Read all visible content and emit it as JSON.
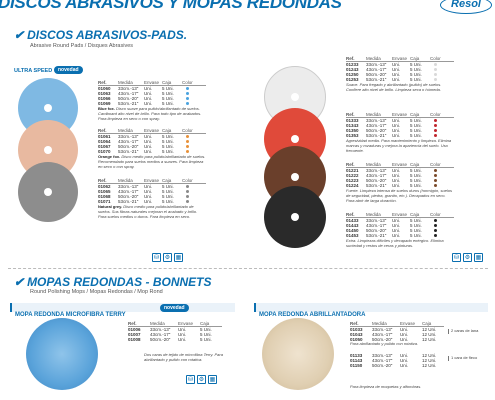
{
  "header": {
    "title": "DISCOS ABRASIVOS Y MOPAS REDONDAS",
    "logo": "Resol"
  },
  "discs": {
    "title": "DISCOS ABRASIVOS-PADS.",
    "subtitle": "Abrasive Round Pads / Disques Abrasives",
    "badge": "ULTRA SPEED",
    "novelty": "novedad",
    "columns": [
      "Ref.",
      "Medida",
      "Envase",
      "Caja",
      "Color"
    ],
    "left_groups": [
      {
        "name": "Blue fox.",
        "color": "#4aa3df",
        "rows": [
          [
            "01060",
            "33cm.-13\"",
            "Uni.",
            "5 Uni."
          ],
          [
            "01063",
            "43cm.-17\"",
            "Uni.",
            "5 Uni."
          ],
          [
            "01066",
            "50cm.-20\"",
            "Uni.",
            "5 Uni."
          ],
          [
            "01069",
            "53cm.-21\"",
            "Uni.",
            "5 Uni."
          ]
        ],
        "desc_name": "Blue fox.",
        "desc": "Disco suave para pulido/abrillantado de suelos. Cardboard alto nivel de brillo. Para todo tipo de acabados. Para limpieza en seco o con spray."
      },
      {
        "name": "Orange fox.",
        "color": "#e8913a",
        "rows": [
          [
            "01061",
            "33cm.-13\"",
            "Uni.",
            "5 Uni."
          ],
          [
            "01064",
            "43cm.-17\"",
            "Uni.",
            "5 Uni."
          ],
          [
            "01067",
            "50cm.-20\"",
            "Uni.",
            "5 Uni."
          ],
          [
            "01070",
            "53cm.-21\"",
            "Uni.",
            "5 Uni."
          ]
        ],
        "desc_name": "Orange fox.",
        "desc": "Disco medio para pulido/abrillantado de suelos. Recomendado para suelos medios a suaves. Para limpieza en seco o con spray."
      },
      {
        "name": "Natural grey.",
        "color": "#8a8a8a",
        "rows": [
          [
            "01062",
            "33cm.-13\"",
            "Uni.",
            "5 Uni."
          ],
          [
            "01065",
            "43cm.-17\"",
            "Uni.",
            "5 Uni."
          ],
          [
            "01068",
            "50cm.-20\"",
            "Uni.",
            "5 Uni."
          ],
          [
            "01071",
            "53cm.-21\"",
            "Uni.",
            "5 Uni."
          ]
        ],
        "desc_name": "Natural grey.",
        "desc": "Disco medio para pulido/abrillantado de suelos. Sus fibras naturales mejoran el acabado y brillo. Para suelos medios o duros. Para limpieza en seco."
      }
    ],
    "right_groups": [
      {
        "color": "#d9d9d9",
        "rows": [
          [
            "01233",
            "33cm.-13\"",
            "Uni.",
            "5 Uni."
          ],
          [
            "01243",
            "43cm.-17\"",
            "Uni.",
            "5 Uni."
          ],
          [
            "01250",
            "50cm.-20\"",
            "Uni.",
            "5 Uni."
          ],
          [
            "01253",
            "53cm.-21\"",
            "Uni.",
            "5 Uni."
          ]
        ],
        "desc": "Suave. Para fregado y abrillantado (pulido) de suelos. Confiere alto nivel de brillo. Limpieza seca o húmeda."
      },
      {
        "color": "#c0262e",
        "rows": [
          [
            "01333",
            "33cm.-13\"",
            "Uni.",
            "5 Uni."
          ],
          [
            "01343",
            "43cm.-17\"",
            "Uni.",
            "5 Uni."
          ],
          [
            "01350",
            "50cm.-20\"",
            "Uni.",
            "5 Uni."
          ],
          [
            "01353",
            "53cm.-21\"",
            "Uni.",
            "5 Uni."
          ]
        ],
        "desc": "Agresividad media. Para mantenimiento y limpieza. Elimina marcas y rozaduras y mejora la apariencia del suelo. Uso frecuente."
      },
      {
        "color": "#7a4a2a",
        "rows": [
          [
            "01221",
            "33cm.-13\"",
            "Uni.",
            "5 Uni."
          ],
          [
            "01222",
            "43cm.-17\"",
            "Uni.",
            "5 Uni."
          ],
          [
            "01223",
            "50cm.-20\"",
            "Uni.",
            "5 Uni."
          ],
          [
            "01224",
            "53cm.-21\"",
            "Uni.",
            "5 Uni."
          ]
        ],
        "desc": "Fuerte. Limpieza intensa de suelos duros (hormigón, suelos de seguridad, piedra, granito, etc.). Decapados en seco. Para abrir de larga duración."
      },
      {
        "color": "#222222",
        "rows": [
          [
            "01433",
            "33cm.-13\"",
            "Uni.",
            "5 Uni."
          ],
          [
            "01443",
            "43cm.-17\"",
            "Uni.",
            "5 Uni."
          ],
          [
            "01450",
            "50cm.-20\"",
            "Uni.",
            "5 Uni."
          ],
          [
            "01453",
            "53cm.-21\"",
            "Uni.",
            "5 Uni."
          ]
        ],
        "desc": "Extra. Limpiezas difíciles y decapado enérgico. Elimina suciedad y restos de ceras y pinturas."
      }
    ]
  },
  "mops": {
    "title": "MOPAS REDONDAS - BONNETS",
    "subtitle": "Round Polishing Mops / Mopas Redondas / Mop Rond",
    "left": {
      "title": "MOPA REDONDA MICROFIBRA TERRY",
      "novelty": "novedad",
      "columns": [
        "Ref.",
        "Medida",
        "Envase",
        "Caja"
      ],
      "rows": [
        [
          "01006",
          "33cm.-13\"",
          "Uni.",
          "5 Uni."
        ],
        [
          "01007",
          "43cm.-17\"",
          "Uni.",
          "5 Uni."
        ],
        [
          "01008",
          "50cm.-20\"",
          "Uni.",
          "5 Uni."
        ]
      ],
      "desc": "Dos caras de tejido de microfibra Terry. Para abrillantado y pulido con rotativa."
    },
    "right": {
      "title": "MOPA REDONDA ABRILLANTADORA",
      "columns": [
        "Ref.",
        "Medida",
        "Envase",
        "Caja"
      ],
      "rows": [
        [
          "01033",
          "33cm.-13\"",
          "Uni.",
          "12 Uni."
        ],
        [
          "01043",
          "43cm.-17\"",
          "Uni.",
          "12 Uni."
        ],
        [
          "01050",
          "50cm.-20\"",
          "Uni.",
          "12 Uni."
        ],
        [
          "01133",
          "33cm.-13\"",
          "Uni.",
          "12 Uni."
        ],
        [
          "01143",
          "43cm.-17\"",
          "Uni.",
          "12 Uni."
        ],
        [
          "01150",
          "50cm.-20\"",
          "Uni.",
          "12 Uni."
        ]
      ],
      "brace1": "2 caras de lana",
      "brace2": "1 cara de fleco",
      "desc1": "Para abrillantado y pulido con rotativa.",
      "desc2": "Para limpieza de moquetas y alfombras."
    }
  },
  "icons": [
    "bucket-icon",
    "machine-icon",
    "floor-icon"
  ]
}
